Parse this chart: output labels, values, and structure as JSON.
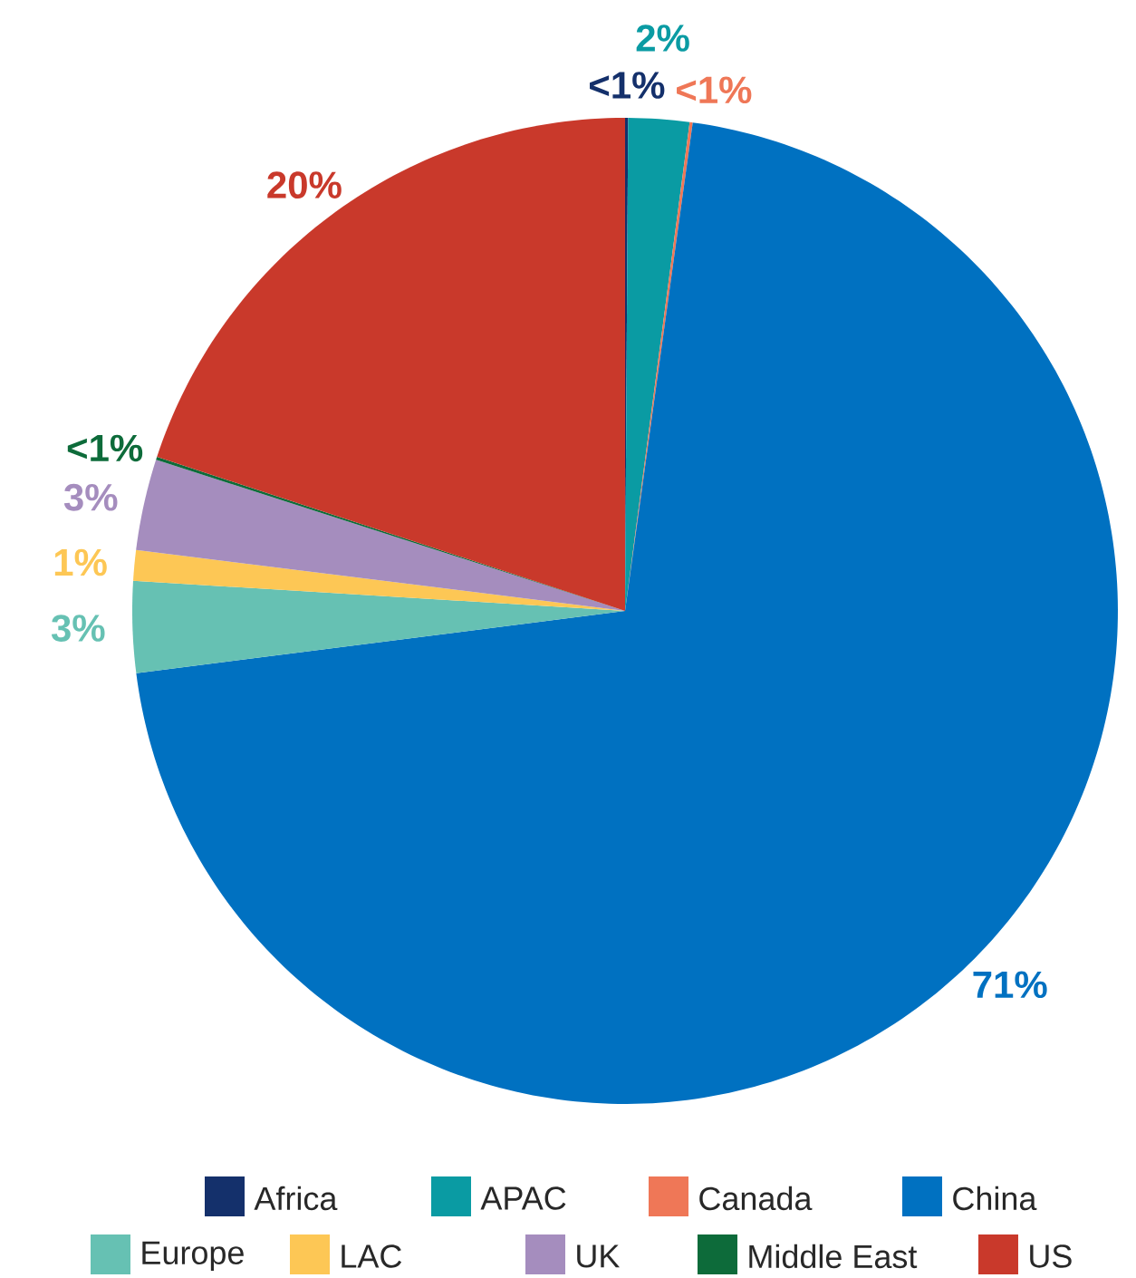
{
  "chart_data": {
    "type": "pie",
    "categories": [
      "Africa",
      "APAC",
      "Canada",
      "China",
      "Europe",
      "LAC",
      "UK",
      "Middle East",
      "US"
    ],
    "values": [
      0.1,
      2,
      0.1,
      71,
      3,
      1,
      3,
      0.1,
      20
    ],
    "value_labels": [
      "<1%",
      "2%",
      "<1%",
      "71%",
      "3%",
      "1%",
      "3%",
      "<1%",
      "20%"
    ],
    "colors": [
      "#14306b",
      "#0a9ba3",
      "#ef7757",
      "#0071c1",
      "#66c1b3",
      "#fdc755",
      "#a58dbe",
      "#0d6b3a",
      "#c9392b"
    ],
    "legend": "bottom"
  }
}
